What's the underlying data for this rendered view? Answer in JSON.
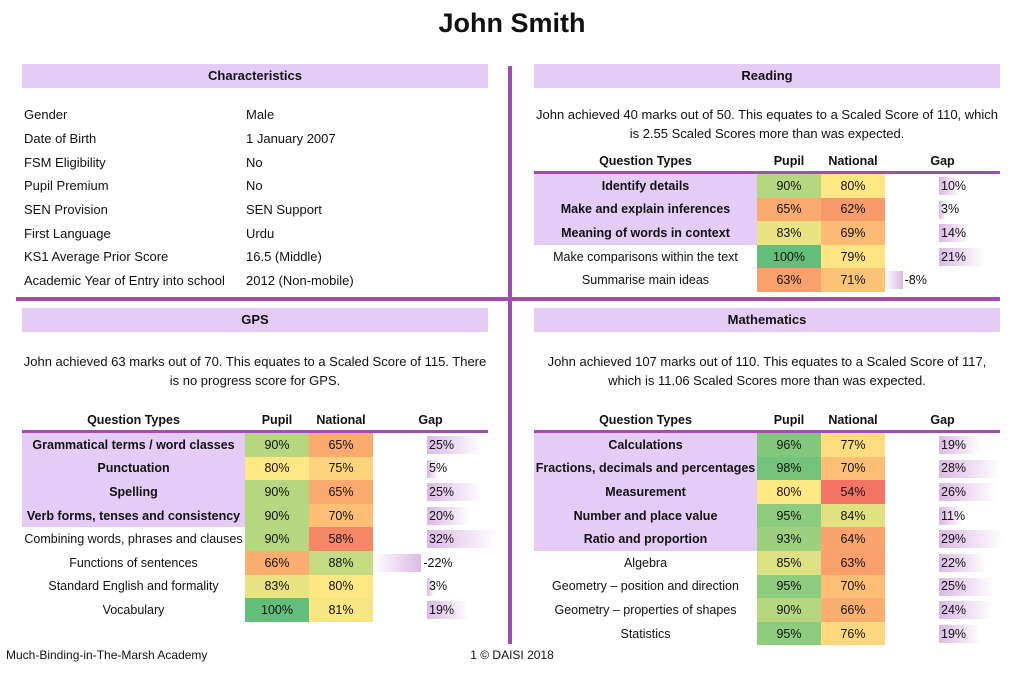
{
  "title": "John Smith",
  "characteristics": {
    "heading": "Characteristics",
    "rows": [
      {
        "label": "Gender",
        "value": "Male"
      },
      {
        "label": "Date of Birth",
        "value": "1 January 2007"
      },
      {
        "label": "FSM Eligibility",
        "value": "No"
      },
      {
        "label": "Pupil Premium",
        "value": "No"
      },
      {
        "label": "SEN Provision",
        "value": "SEN Support"
      },
      {
        "label": "First Language",
        "value": "Urdu"
      },
      {
        "label": "KS1 Average Prior Score",
        "value": "16.5 (Middle)"
      },
      {
        "label": "Academic Year of Entry into school",
        "value": "2012 (Non-mobile)"
      }
    ]
  },
  "reading": {
    "heading": "Reading",
    "description": "John achieved 40 marks out of 50. This equates to a Scaled Score of 110, which is 2.55 Scaled Scores more than was expected.",
    "columns": [
      "Question Types",
      "Pupil",
      "National",
      "Gap"
    ],
    "rows": [
      {
        "q": "Identify details",
        "pupil": 90,
        "national": 80,
        "gap": 10,
        "highlight": true
      },
      {
        "q": "Make and explain inferences",
        "pupil": 65,
        "national": 62,
        "gap": 3,
        "highlight": true
      },
      {
        "q": "Meaning of words in context",
        "pupil": 83,
        "national": 69,
        "gap": 14,
        "highlight": true
      },
      {
        "q": "Make comparisons within the text",
        "pupil": 100,
        "national": 79,
        "gap": 21,
        "highlight": false
      },
      {
        "q": "Summarise main ideas",
        "pupil": 63,
        "national": 71,
        "gap": -8,
        "highlight": false
      }
    ]
  },
  "gps": {
    "heading": "GPS",
    "description": "John achieved 63 marks out of 70. This equates to a Scaled Score of 115. There is no progress score for GPS.",
    "columns": [
      "Question Types",
      "Pupil",
      "National",
      "Gap"
    ],
    "rows": [
      {
        "q": "Grammatical terms / word classes",
        "pupil": 90,
        "national": 65,
        "gap": 25,
        "highlight": true
      },
      {
        "q": "Punctuation",
        "pupil": 80,
        "national": 75,
        "gap": 5,
        "highlight": true
      },
      {
        "q": "Spelling",
        "pupil": 90,
        "national": 65,
        "gap": 25,
        "highlight": true
      },
      {
        "q": "Verb forms, tenses and consistency",
        "pupil": 90,
        "national": 70,
        "gap": 20,
        "highlight": true
      },
      {
        "q": "Combining words, phrases and clauses",
        "pupil": 90,
        "national": 58,
        "gap": 32,
        "highlight": false
      },
      {
        "q": "Functions of sentences",
        "pupil": 66,
        "national": 88,
        "gap": -22,
        "highlight": false
      },
      {
        "q": "Standard English and formality",
        "pupil": 83,
        "national": 80,
        "gap": 3,
        "highlight": false
      },
      {
        "q": "Vocabulary",
        "pupil": 100,
        "national": 81,
        "gap": 19,
        "highlight": false
      }
    ]
  },
  "mathematics": {
    "heading": "Mathematics",
    "description": "John achieved 107 marks out of 110. This equates to a Scaled Score of 117, which is 11.06 Scaled Scores more than was expected.",
    "columns": [
      "Question Types",
      "Pupil",
      "National",
      "Gap"
    ],
    "rows": [
      {
        "q": "Calculations",
        "pupil": 96,
        "national": 77,
        "gap": 19,
        "highlight": true
      },
      {
        "q": "Fractions, decimals and percentages",
        "pupil": 98,
        "national": 70,
        "gap": 28,
        "highlight": true
      },
      {
        "q": "Measurement",
        "pupil": 80,
        "national": 54,
        "gap": 26,
        "highlight": true
      },
      {
        "q": "Number and place value",
        "pupil": 95,
        "national": 84,
        "gap": 11,
        "highlight": true
      },
      {
        "q": "Ratio and proportion",
        "pupil": 93,
        "national": 64,
        "gap": 29,
        "highlight": true
      },
      {
        "q": "Algebra",
        "pupil": 85,
        "national": 63,
        "gap": 22,
        "highlight": false
      },
      {
        "q": "Geometry – position and direction",
        "pupil": 95,
        "national": 70,
        "gap": 25,
        "highlight": false
      },
      {
        "q": "Geometry – properties of shapes",
        "pupil": 90,
        "national": 66,
        "gap": 24,
        "highlight": false
      },
      {
        "q": "Statistics",
        "pupil": 95,
        "national": 76,
        "gap": 19,
        "highlight": false
      }
    ]
  },
  "footer": {
    "school": "Much-Binding-in-The-Marsh Academy",
    "page": "1 © DAISI 2018"
  }
}
